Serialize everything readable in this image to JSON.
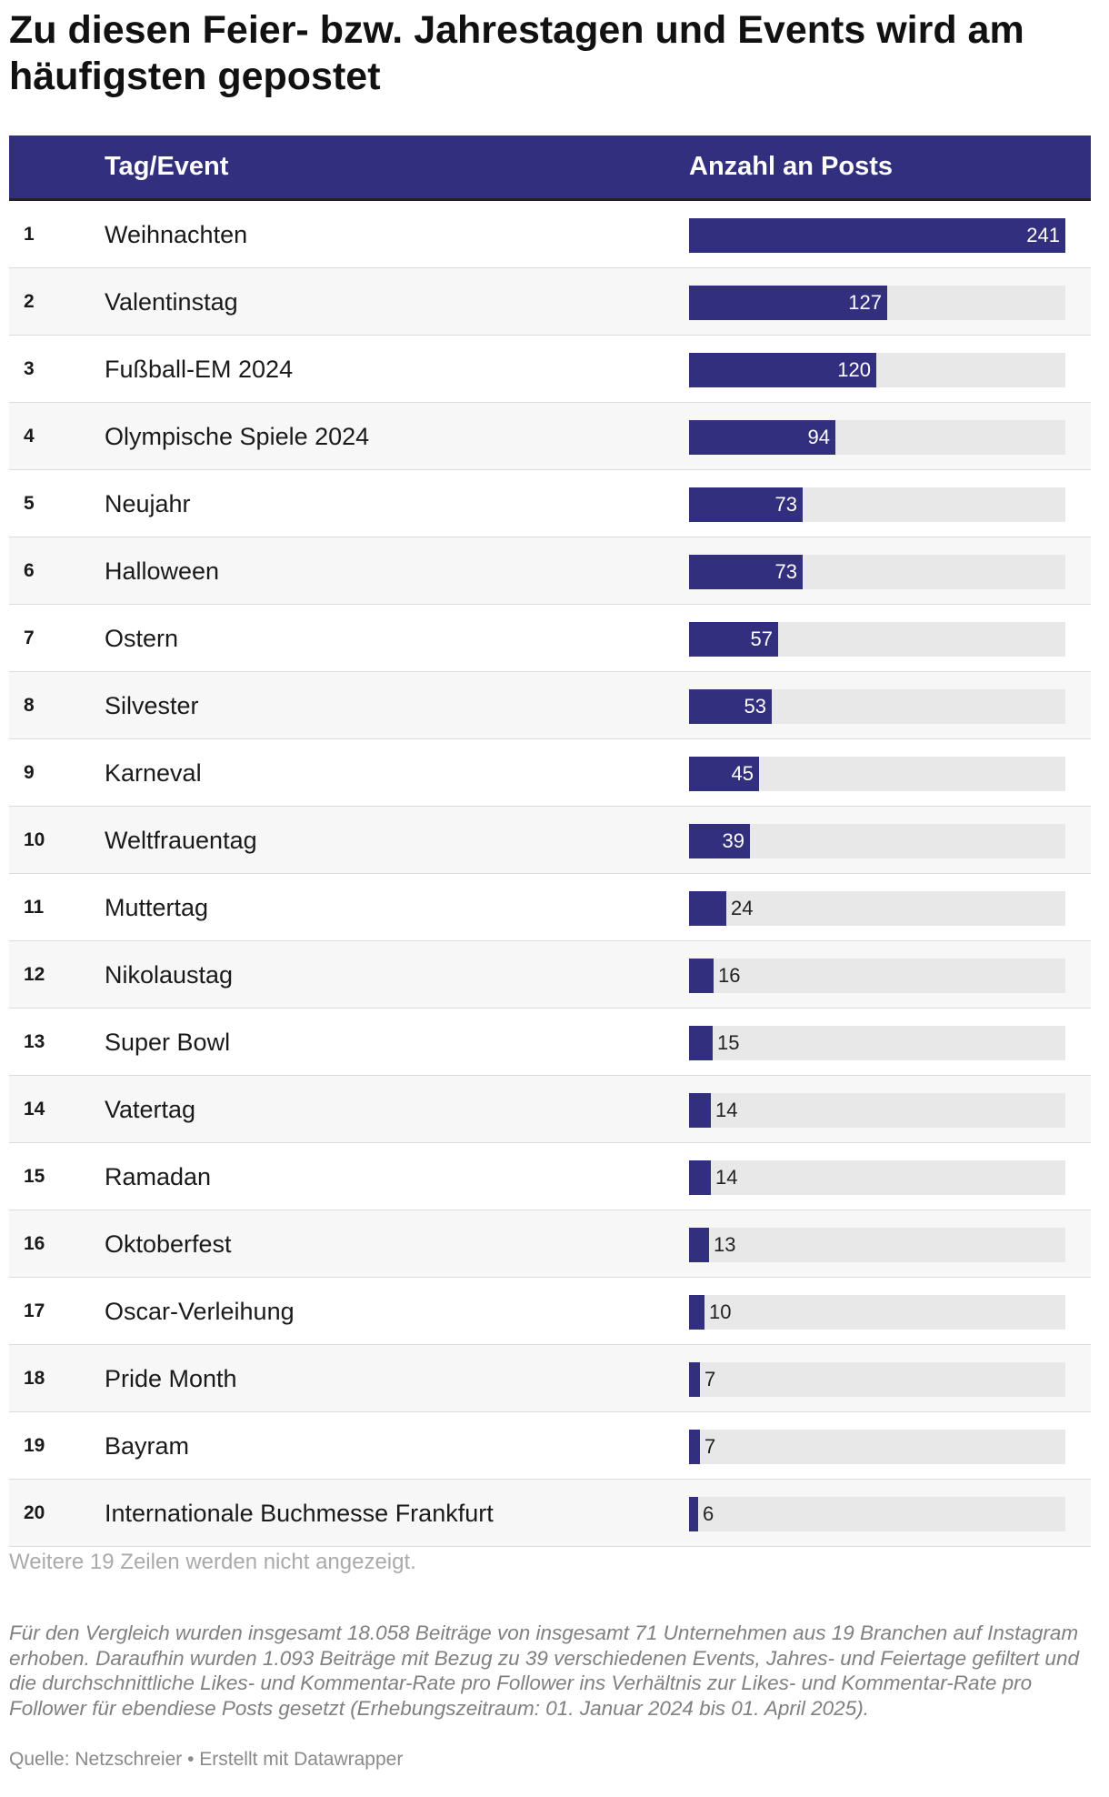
{
  "title": "Zu diesen Feier- bzw. Jahrestagen und Events wird am häufigsten gepostet",
  "colors": {
    "header_bg": "#312f7e",
    "bar": "#312f7e",
    "track": "#e8e8e8"
  },
  "chart_data": {
    "type": "bar",
    "orientation": "horizontal",
    "columns": [
      "Tag/Event",
      "Anzahl an Posts"
    ],
    "xlim": [
      0,
      241
    ],
    "rows": [
      {
        "rank": "1",
        "label": "Weihnachten",
        "value": 241
      },
      {
        "rank": "2",
        "label": "Valentinstag",
        "value": 127
      },
      {
        "rank": "3",
        "label": "Fußball-EM 2024",
        "value": 120
      },
      {
        "rank": "4",
        "label": "Olympische Spiele 2024",
        "value": 94
      },
      {
        "rank": "5",
        "label": "Neujahr",
        "value": 73
      },
      {
        "rank": "6",
        "label": "Halloween",
        "value": 73
      },
      {
        "rank": "7",
        "label": "Ostern",
        "value": 57
      },
      {
        "rank": "8",
        "label": "Silvester",
        "value": 53
      },
      {
        "rank": "9",
        "label": "Karneval",
        "value": 45
      },
      {
        "rank": "10",
        "label": "Weltfrauentag",
        "value": 39
      },
      {
        "rank": "11",
        "label": "Muttertag",
        "value": 24
      },
      {
        "rank": "12",
        "label": "Nikolaustag",
        "value": 16
      },
      {
        "rank": "13",
        "label": "Super Bowl",
        "value": 15
      },
      {
        "rank": "14",
        "label": "Vatertag",
        "value": 14
      },
      {
        "rank": "15",
        "label": "Ramadan",
        "value": 14
      },
      {
        "rank": "16",
        "label": "Oktoberfest",
        "value": 13
      },
      {
        "rank": "17",
        "label": "Oscar-Verleihung",
        "value": 10
      },
      {
        "rank": "18",
        "label": "Pride Month",
        "value": 7
      },
      {
        "rank": "19",
        "label": "Bayram",
        "value": 7
      },
      {
        "rank": "20",
        "label": "Internationale Buchmesse Frankfurt",
        "value": 6
      }
    ]
  },
  "more_rows_text": "Weitere 19 Zeilen werden nicht angezeigt.",
  "note": "Für den Vergleich wurden insgesamt 18.058 Beiträge von insgesamt 71 Unternehmen aus 19 Branchen auf Instagram erhoben. Daraufhin wurden 1.093 Beiträge mit Bezug zu 39 verschiedenen Events, Jahres- und Feiertage gefiltert und die durchschnittliche Likes- und Kommentar-Rate pro Follower ins Verhältnis zur Likes- und Kommentar-Rate pro Follower für ebendiese Posts gesetzt (Erhebungszeitraum: 01. Januar 2024 bis 01. April 2025).",
  "footer": "Quelle: Netzschreier • Erstellt mit Datawrapper"
}
